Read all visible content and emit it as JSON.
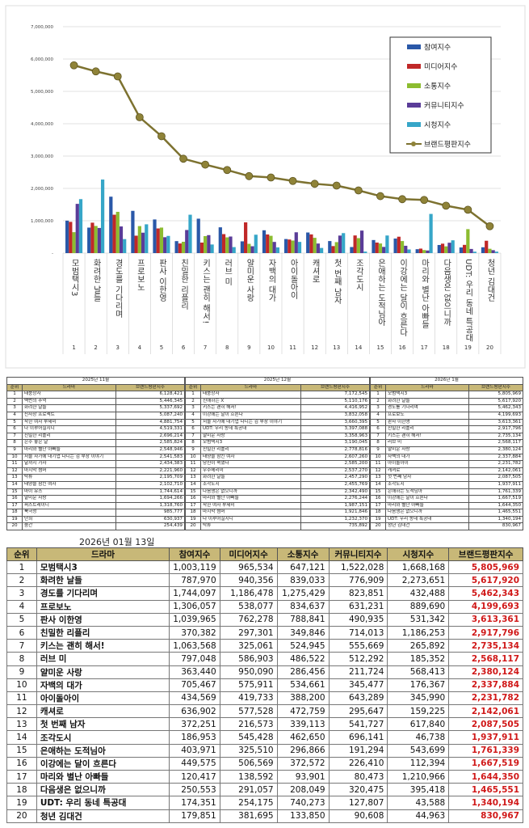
{
  "monthly_tables": [
    {
      "title": "2025년 11월",
      "headers": [
        "순위",
        "드라마",
        "브랜드평판지수"
      ],
      "rows": [
        [
          "1",
          "태풍상사",
          "6,128,421"
        ],
        [
          "2",
          "백번의 추억",
          "5,446,345"
        ],
        [
          "3",
          "화려한 날들",
          "5,337,692"
        ],
        [
          "4",
          "신사장 프로젝트",
          "5,087,240"
        ],
        [
          "5",
          "착한 여자 부세미",
          "4,881,754"
        ],
        [
          "6",
          "다 이루어질지니",
          "4,519,331"
        ],
        [
          "7",
          "친밀한 리플리",
          "2,696,214"
        ],
        [
          "8",
          "은수 좋은 날",
          "2,585,824"
        ],
        [
          "9",
          "마리와 별난 아빠들",
          "2,548,946"
        ],
        [
          "10",
          "서울 자가에 대기업 다니는 김 부장 이야기",
          "2,541,583"
        ],
        [
          "11",
          "달까지 가자",
          "2,434,383"
        ],
        [
          "12",
          "마지막 썸머",
          "2,221,960"
        ],
        [
          "13",
          "탁류",
          "2,195,709"
        ],
        [
          "14",
          "태양을 삼킨 여자",
          "2,102,710"
        ],
        [
          "15",
          "마이 유스",
          "1,744,614"
        ],
        [
          "16",
          "얄미운 사랑",
          "1,694,266"
        ],
        [
          "17",
          "퍼스트레이디",
          "1,318,760"
        ],
        [
          "18",
          "북극성",
          "985,777"
        ],
        [
          "19",
          "단죄",
          "630,937"
        ],
        [
          "20",
          "줌간",
          "254,439"
        ]
      ]
    },
    {
      "title": "2025년 12월",
      "headers": [
        "순위",
        "드라마",
        "브랜드평판지수"
      ],
      "rows": [
        [
          "1",
          "태풍상사",
          "7,172,545"
        ],
        [
          "2",
          "친애하는 X",
          "5,110,176"
        ],
        [
          "3",
          "키스는 괜히 해서!",
          "4,416,952"
        ],
        [
          "4",
          "이강에는 달이 흐른다",
          "3,832,058"
        ],
        [
          "5",
          "서울 자가에 대기업 다니는 김 부장 이야기",
          "3,660,395"
        ],
        [
          "6",
          "UDT: 우리 동네 특공대",
          "3,397,088"
        ],
        [
          "7",
          "얄미운 사랑",
          "3,358,963"
        ],
        [
          "8",
          "모범택시3",
          "3,190,045"
        ],
        [
          "9",
          "친밀한 리플리",
          "2,778,816"
        ],
        [
          "10",
          "태양을 삼킨 여자",
          "2,607,260"
        ],
        [
          "11",
          "당신이 죽였다",
          "2,585,200"
        ],
        [
          "12",
          "우주메리미",
          "2,537,270"
        ],
        [
          "13",
          "화려한 날들",
          "2,457,290"
        ],
        [
          "14",
          "조각도시",
          "2,455,769"
        ],
        [
          "15",
          "다음생은 없으니까",
          "2,342,490"
        ],
        [
          "16",
          "마리와 별난 아빠들",
          "2,276,244"
        ],
        [
          "17",
          "착한 여자 부세미",
          "1,987,151"
        ],
        [
          "18",
          "마지막 썸머",
          "1,921,846"
        ],
        [
          "19",
          "다 이루어질지니",
          "1,232,370"
        ],
        [
          "20",
          "탁류",
          "735,892"
        ]
      ]
    },
    {
      "title": "2026년 1월",
      "headers": [
        "순위",
        "드라마",
        "브랜드평판지수"
      ],
      "rows": [
        [
          "1",
          "모범택시3",
          "5,805,969"
        ],
        [
          "2",
          "화려한 날들",
          "5,617,920"
        ],
        [
          "3",
          "경도를 기다리며",
          "5,462,343"
        ],
        [
          "4",
          "프로보노",
          "4,199,693"
        ],
        [
          "5",
          "판사 이한영",
          "3,613,361"
        ],
        [
          "6",
          "친밀한 리플리",
          "2,917,796"
        ],
        [
          "7",
          "키스는 괜히 해서!",
          "2,735,134"
        ],
        [
          "8",
          "러브 미",
          "2,568,117"
        ],
        [
          "9",
          "얄미운 사랑",
          "2,380,124"
        ],
        [
          "10",
          "자백의 대가",
          "2,337,884"
        ],
        [
          "11",
          "아이돌아이",
          "2,231,782"
        ],
        [
          "12",
          "캐셔로",
          "2,142,061"
        ],
        [
          "13",
          "첫 번째 남자",
          "2,087,505"
        ],
        [
          "14",
          "조각도시",
          "1,937,911"
        ],
        [
          "15",
          "은애하는 도적님아",
          "1,761,339"
        ],
        [
          "16",
          "이강에는 달이 흐른다",
          "1,667,519"
        ],
        [
          "17",
          "마리와 별난 아빠들",
          "1,644,350"
        ],
        [
          "18",
          "다음생은 없으니까",
          "1,465,551"
        ],
        [
          "19",
          "UDT: 우리 동네 특공대",
          "1,340,194"
        ],
        [
          "20",
          "청년 김대건",
          "830,967"
        ]
      ]
    }
  ],
  "detail_table": {
    "date": "2026년 01월 13일",
    "headers": [
      "순위",
      "드라마",
      "참여지수",
      "미디어지수",
      "소통지수",
      "커뮤니티지수",
      "시청지수",
      "브랜드평판지수"
    ],
    "rows": [
      [
        "1",
        "모범택시3",
        "1,003,119",
        "965,534",
        "647,121",
        "1,522,028",
        "1,668,168",
        "5,805,969"
      ],
      [
        "2",
        "화려한 날들",
        "787,970",
        "940,356",
        "839,033",
        "776,909",
        "2,273,651",
        "5,617,920"
      ],
      [
        "3",
        "경도를 기다리며",
        "1,744,097",
        "1,186,478",
        "1,275,429",
        "823,851",
        "432,488",
        "5,462,343"
      ],
      [
        "4",
        "프로보노",
        "1,306,057",
        "538,077",
        "834,637",
        "631,231",
        "889,690",
        "4,199,693"
      ],
      [
        "5",
        "판사 이한영",
        "1,039,965",
        "762,278",
        "788,841",
        "490,935",
        "531,342",
        "3,613,361"
      ],
      [
        "6",
        "친밀한 리플리",
        "370,382",
        "297,301",
        "349,846",
        "714,013",
        "1,186,253",
        "2,917,796"
      ],
      [
        "7",
        "키스는 괜히 해서!",
        "1,063,568",
        "325,061",
        "524,945",
        "555,669",
        "265,892",
        "2,735,134"
      ],
      [
        "8",
        "러브 미",
        "797,048",
        "586,903",
        "486,522",
        "512,292",
        "185,352",
        "2,568,117"
      ],
      [
        "9",
        "얄미운 사랑",
        "363,440",
        "950,090",
        "286,456",
        "211,724",
        "568,413",
        "2,380,124"
      ],
      [
        "10",
        "자백의 대가",
        "705,467",
        "575,911",
        "534,661",
        "345,477",
        "176,367",
        "2,337,884"
      ],
      [
        "11",
        "아이돌아이",
        "434,569",
        "419,733",
        "388,200",
        "643,289",
        "345,990",
        "2,231,782"
      ],
      [
        "12",
        "캐셔로",
        "636,902",
        "577,528",
        "472,759",
        "295,647",
        "159,225",
        "2,142,061"
      ],
      [
        "13",
        "첫 번째 남자",
        "372,251",
        "216,573",
        "339,113",
        "541,727",
        "617,840",
        "2,087,505"
      ],
      [
        "14",
        "조각도시",
        "186,953",
        "545,428",
        "462,650",
        "696,141",
        "46,738",
        "1,937,911"
      ],
      [
        "15",
        "은애하는 도적님아",
        "403,971",
        "325,510",
        "296,866",
        "191,294",
        "543,699",
        "1,761,339"
      ],
      [
        "16",
        "이강에는 달이 흐른다",
        "449,575",
        "506,569",
        "372,572",
        "226,410",
        "112,394",
        "1,667,519"
      ],
      [
        "17",
        "마리와 별난 아빠들",
        "120,417",
        "138,592",
        "93,901",
        "80,473",
        "1,210,966",
        "1,644,350"
      ],
      [
        "18",
        "다음생은 없으니까",
        "250,553",
        "291,057",
        "208,049",
        "320,475",
        "395,418",
        "1,465,551"
      ],
      [
        "19",
        "UDT: 우리 동네 특공대",
        "174,351",
        "254,175",
        "740,273",
        "127,807",
        "43,588",
        "1,340,194"
      ],
      [
        "20",
        "청년 김대건",
        "179,851",
        "381,695",
        "133,850",
        "90,608",
        "44,963",
        "830,967"
      ]
    ]
  },
  "chart_data": {
    "type": "bar+line",
    "ylim": [
      0,
      7000000
    ],
    "yticks": [
      "-",
      "1,000,000",
      "2,000,000",
      "3,000,000",
      "4,000,000",
      "5,000,000",
      "6,000,000",
      "7,000,000"
    ],
    "grid": true,
    "legend_position": "top-right",
    "x_numbers": [
      "1",
      "2",
      "3",
      "4",
      "5",
      "6",
      "7",
      "8",
      "9",
      "10",
      "11",
      "12",
      "13",
      "14",
      "15",
      "16",
      "17",
      "18",
      "19",
      "20"
    ],
    "categories": [
      "모범택시3",
      "화려한 날들",
      "경도를 기다리며",
      "프로보노",
      "판사 이한영",
      "친밀한 리플리",
      "키스는 괜히 해서!",
      "러브 미",
      "얄미운 사랑",
      "자백의 대가",
      "아이돌아이",
      "캐셔로",
      "첫 번째 남자",
      "조각도시",
      "은애하는 도적님아",
      "이강에는 달이 흐른다",
      "마리와 별난 아빠들",
      "다음생은 없으니까",
      "UDT: 우리 동네 특공대",
      "청년 김대건"
    ],
    "series": [
      {
        "name": "참여지수",
        "type": "bar",
        "color": "#2a58a8",
        "values": [
          1003119,
          787970,
          1744097,
          1306057,
          1039965,
          370382,
          1063568,
          797048,
          363440,
          705467,
          434569,
          636902,
          372251,
          186953,
          403971,
          449575,
          120417,
          250553,
          174351,
          179851
        ]
      },
      {
        "name": "미디어지수",
        "type": "bar",
        "color": "#c02828",
        "values": [
          965534,
          940356,
          1186478,
          538077,
          762278,
          297301,
          325061,
          586903,
          950090,
          575911,
          419733,
          577528,
          216573,
          545428,
          325510,
          506569,
          138592,
          291057,
          254175,
          381695
        ]
      },
      {
        "name": "소통지수",
        "type": "bar",
        "color": "#8cbc30",
        "values": [
          647121,
          839033,
          1275429,
          834637,
          788841,
          349846,
          524945,
          486522,
          286456,
          534661,
          388200,
          472759,
          339113,
          462650,
          296866,
          372572,
          93901,
          208049,
          740273,
          133850
        ]
      },
      {
        "name": "커뮤니티지수",
        "type": "bar",
        "color": "#5a3c98",
        "values": [
          1522028,
          776909,
          823851,
          631231,
          490935,
          714013,
          555669,
          512292,
          211724,
          345477,
          643289,
          295647,
          541727,
          696141,
          191294,
          226410,
          80473,
          320475,
          127807,
          90608
        ]
      },
      {
        "name": "시청지수",
        "type": "bar",
        "color": "#36a6c8",
        "values": [
          1668168,
          2273651,
          432488,
          889690,
          531342,
          1186253,
          265892,
          185352,
          568413,
          176367,
          345990,
          159225,
          617840,
          46738,
          543699,
          112394,
          1210966,
          395418,
          43588,
          44963
        ]
      },
      {
        "name": "브랜드평판지수",
        "type": "line",
        "color": "#7d7230",
        "values": [
          5805969,
          5617920,
          5462343,
          4199693,
          3613361,
          2917796,
          2735134,
          2568117,
          2380124,
          2337884,
          2231782,
          2142061,
          2087505,
          1937911,
          1761339,
          1667519,
          1644350,
          1465551,
          1340194,
          830967
        ]
      }
    ]
  }
}
